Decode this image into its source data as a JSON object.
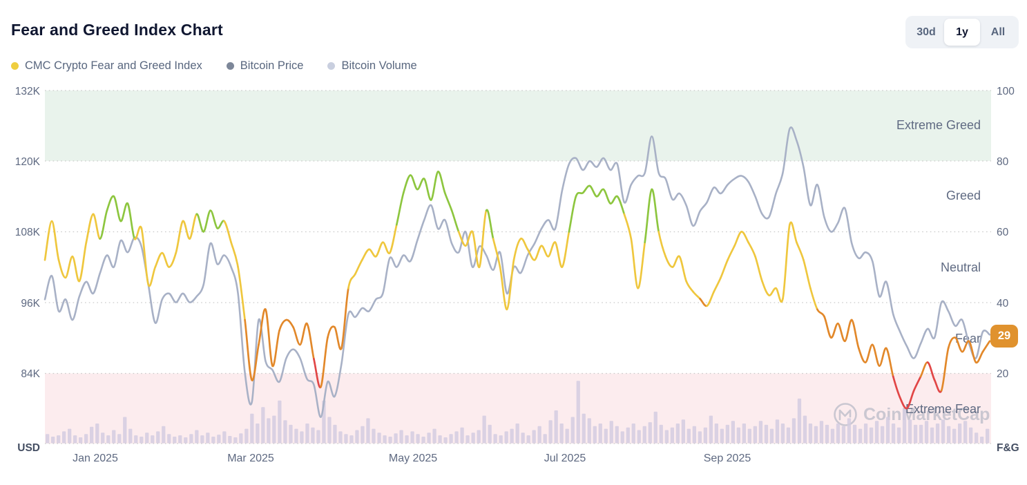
{
  "header": {
    "title": "Fear and Greed Index Chart"
  },
  "toolbar": {
    "ranges": [
      "30d",
      "1y",
      "All"
    ],
    "active_range": "1y"
  },
  "legend": {
    "items": [
      {
        "label": "CMC Crypto Fear and Greed Index"
      },
      {
        "label": "Bitcoin Price"
      },
      {
        "label": "Bitcoin Volume"
      }
    ]
  },
  "watermark": {
    "text": "CoinMarketCap"
  },
  "colors": {
    "title": "#0f1630",
    "text_secondary": "#58667e",
    "grid": "#c9c9c9",
    "band_extreme_greed": "#e9f3ec",
    "band_extreme_fear": "#fcecee",
    "fg_green": "#8dc63f",
    "fg_yellow": "#efc73e",
    "fg_orange": "#e2882a",
    "fg_red": "#e14646",
    "btc_line": "#a8b1c6",
    "volume_bar": "#d4cde1",
    "badge": "#e0922e",
    "zone_label": "#5f6a82",
    "watermark": "#9aa3b5",
    "legend_dot_fg": "#efce3f",
    "legend_dot_btc": "#7d8799",
    "legend_dot_vol": "#c9cfdf"
  },
  "chart_data": {
    "type": "line",
    "title": "Fear and Greed Index Chart",
    "x_ticks": [
      "Jan 2025",
      "Mar 2025",
      "May 2025",
      "Jul 2025",
      "Sep 2025"
    ],
    "left_axis": {
      "unit": "USD",
      "ticks": [
        "132K",
        "120K",
        "108K",
        "96K",
        "84K"
      ],
      "range_usd_k": [
        72,
        132
      ]
    },
    "right_axis": {
      "unit": "F&G",
      "ticks": [
        "100",
        "80",
        "60",
        "40",
        "20"
      ],
      "range": [
        0,
        100
      ]
    },
    "zones": [
      {
        "label": "Extreme Greed",
        "range": [
          80,
          100
        ]
      },
      {
        "label": "Greed",
        "range": [
          60,
          80
        ]
      },
      {
        "label": "Neutral",
        "range": [
          40,
          60
        ]
      },
      {
        "label": "Fear",
        "range": [
          20,
          40
        ]
      },
      {
        "label": "Extreme Fear",
        "range": [
          0,
          20
        ]
      }
    ],
    "color_thresholds": {
      "red_below": 21,
      "orange_below": 41,
      "yellow_below": 62
    },
    "current": {
      "label": "29",
      "value": 29,
      "zone": "Fear"
    },
    "series": [
      {
        "name": "CMC Crypto Fear and Greed Index",
        "axis": "right",
        "values": [
          52,
          63,
          52,
          47,
          53,
          46,
          57,
          65,
          58,
          66,
          70,
          63,
          68,
          58,
          61,
          45,
          50,
          54,
          50,
          54,
          63,
          58,
          65,
          60,
          66,
          61,
          63,
          57,
          50,
          35,
          18,
          28,
          38,
          22,
          32,
          35,
          33,
          28,
          34,
          24,
          16,
          30,
          33,
          27,
          44,
          48,
          52,
          55,
          53,
          57,
          54,
          62,
          71,
          76,
          72,
          75,
          69,
          77,
          71,
          66,
          60,
          56,
          60,
          50,
          66,
          58,
          50,
          38,
          52,
          58,
          55,
          52,
          56,
          53,
          57,
          50,
          60,
          70,
          71,
          73,
          70,
          72,
          68,
          70,
          65,
          58,
          44,
          57,
          72,
          60,
          53,
          50,
          53,
          46,
          43,
          41,
          39,
          43,
          47,
          52,
          56,
          60,
          57,
          53,
          46,
          42,
          44,
          41,
          62,
          57,
          52,
          44,
          38,
          36,
          30,
          34,
          29,
          35,
          27,
          23,
          28,
          22,
          27,
          19,
          13,
          10,
          15,
          19,
          23,
          18,
          15,
          27,
          30,
          26,
          29,
          23,
          26,
          29
        ]
      },
      {
        "name": "Bitcoin Price",
        "axis": "left",
        "unit": "K USD",
        "values": [
          96.5,
          100.5,
          94.5,
          96.5,
          93,
          97,
          99.5,
          97.5,
          101,
          104,
          102,
          106.5,
          104.5,
          107,
          105.5,
          99,
          92.5,
          96.5,
          97.5,
          96,
          97.5,
          96,
          97,
          99,
          106,
          102.5,
          104,
          102,
          97.5,
          84,
          79,
          93,
          86,
          84.5,
          82.5,
          86.5,
          88,
          86.5,
          83,
          82,
          76.5,
          82.5,
          80,
          85.5,
          94,
          93.5,
          95,
          94.5,
          96.5,
          97.5,
          103.5,
          102,
          104,
          103,
          106.5,
          110,
          112.5,
          108.5,
          110,
          106,
          104.5,
          108,
          102,
          105.5,
          104,
          101.5,
          104.5,
          97.5,
          102,
          101,
          104,
          106,
          108.5,
          110,
          108.5,
          115,
          119.5,
          120.5,
          118.5,
          120,
          119,
          120.5,
          118.5,
          119.5,
          113,
          116,
          117.5,
          118,
          124.2,
          118,
          117,
          113.5,
          114.5,
          112.5,
          109,
          111.5,
          113,
          115.5,
          114.5,
          116,
          117,
          117.5,
          116.5,
          114,
          111,
          110.5,
          114.5,
          118,
          125.5,
          123.5,
          119,
          112.5,
          116,
          110.5,
          108,
          109.5,
          112,
          106,
          103.5,
          104.5,
          103,
          97,
          99.5,
          94,
          91,
          88.5,
          86.5,
          89,
          91.5,
          90,
          96,
          94.5,
          92,
          93,
          89,
          86.5,
          91,
          90.5
        ]
      },
      {
        "name": "Bitcoin Volume",
        "axis": "hidden",
        "values_relative": [
          14,
          10,
          12,
          18,
          22,
          12,
          9,
          14,
          25,
          30,
          16,
          12,
          20,
          14,
          40,
          22,
          12,
          10,
          16,
          12,
          18,
          26,
          14,
          10,
          12,
          9,
          14,
          20,
          12,
          16,
          10,
          13,
          18,
          11,
          9,
          15,
          22,
          45,
          30,
          55,
          38,
          42,
          65,
          35,
          28,
          22,
          18,
          30,
          24,
          20,
          65,
          40,
          28,
          18,
          14,
          12,
          20,
          26,
          38,
          22,
          16,
          12,
          10,
          15,
          20,
          12,
          18,
          14,
          10,
          16,
          22,
          12,
          9,
          14,
          18,
          24,
          12,
          16,
          20,
          42,
          28,
          14,
          12,
          18,
          22,
          30,
          16,
          12,
          20,
          26,
          14,
          35,
          50,
          30,
          22,
          40,
          95,
          45,
          38,
          26,
          30,
          22,
          34,
          26,
          18,
          24,
          30,
          20,
          26,
          32,
          48,
          28,
          20,
          24,
          30,
          36,
          22,
          26,
          18,
          24,
          42,
          30,
          22,
          28,
          34,
          24,
          30,
          22,
          26,
          34,
          28,
          22,
          36,
          30,
          24,
          38,
          68,
          42,
          30,
          26,
          34,
          28,
          22,
          30,
          26,
          38,
          28,
          22,
          30,
          24,
          34,
          26,
          40,
          30,
          24,
          52,
          36,
          28,
          28,
          34,
          24,
          30,
          36,
          26,
          22,
          30,
          34,
          24,
          16,
          10,
          22
        ]
      }
    ]
  }
}
